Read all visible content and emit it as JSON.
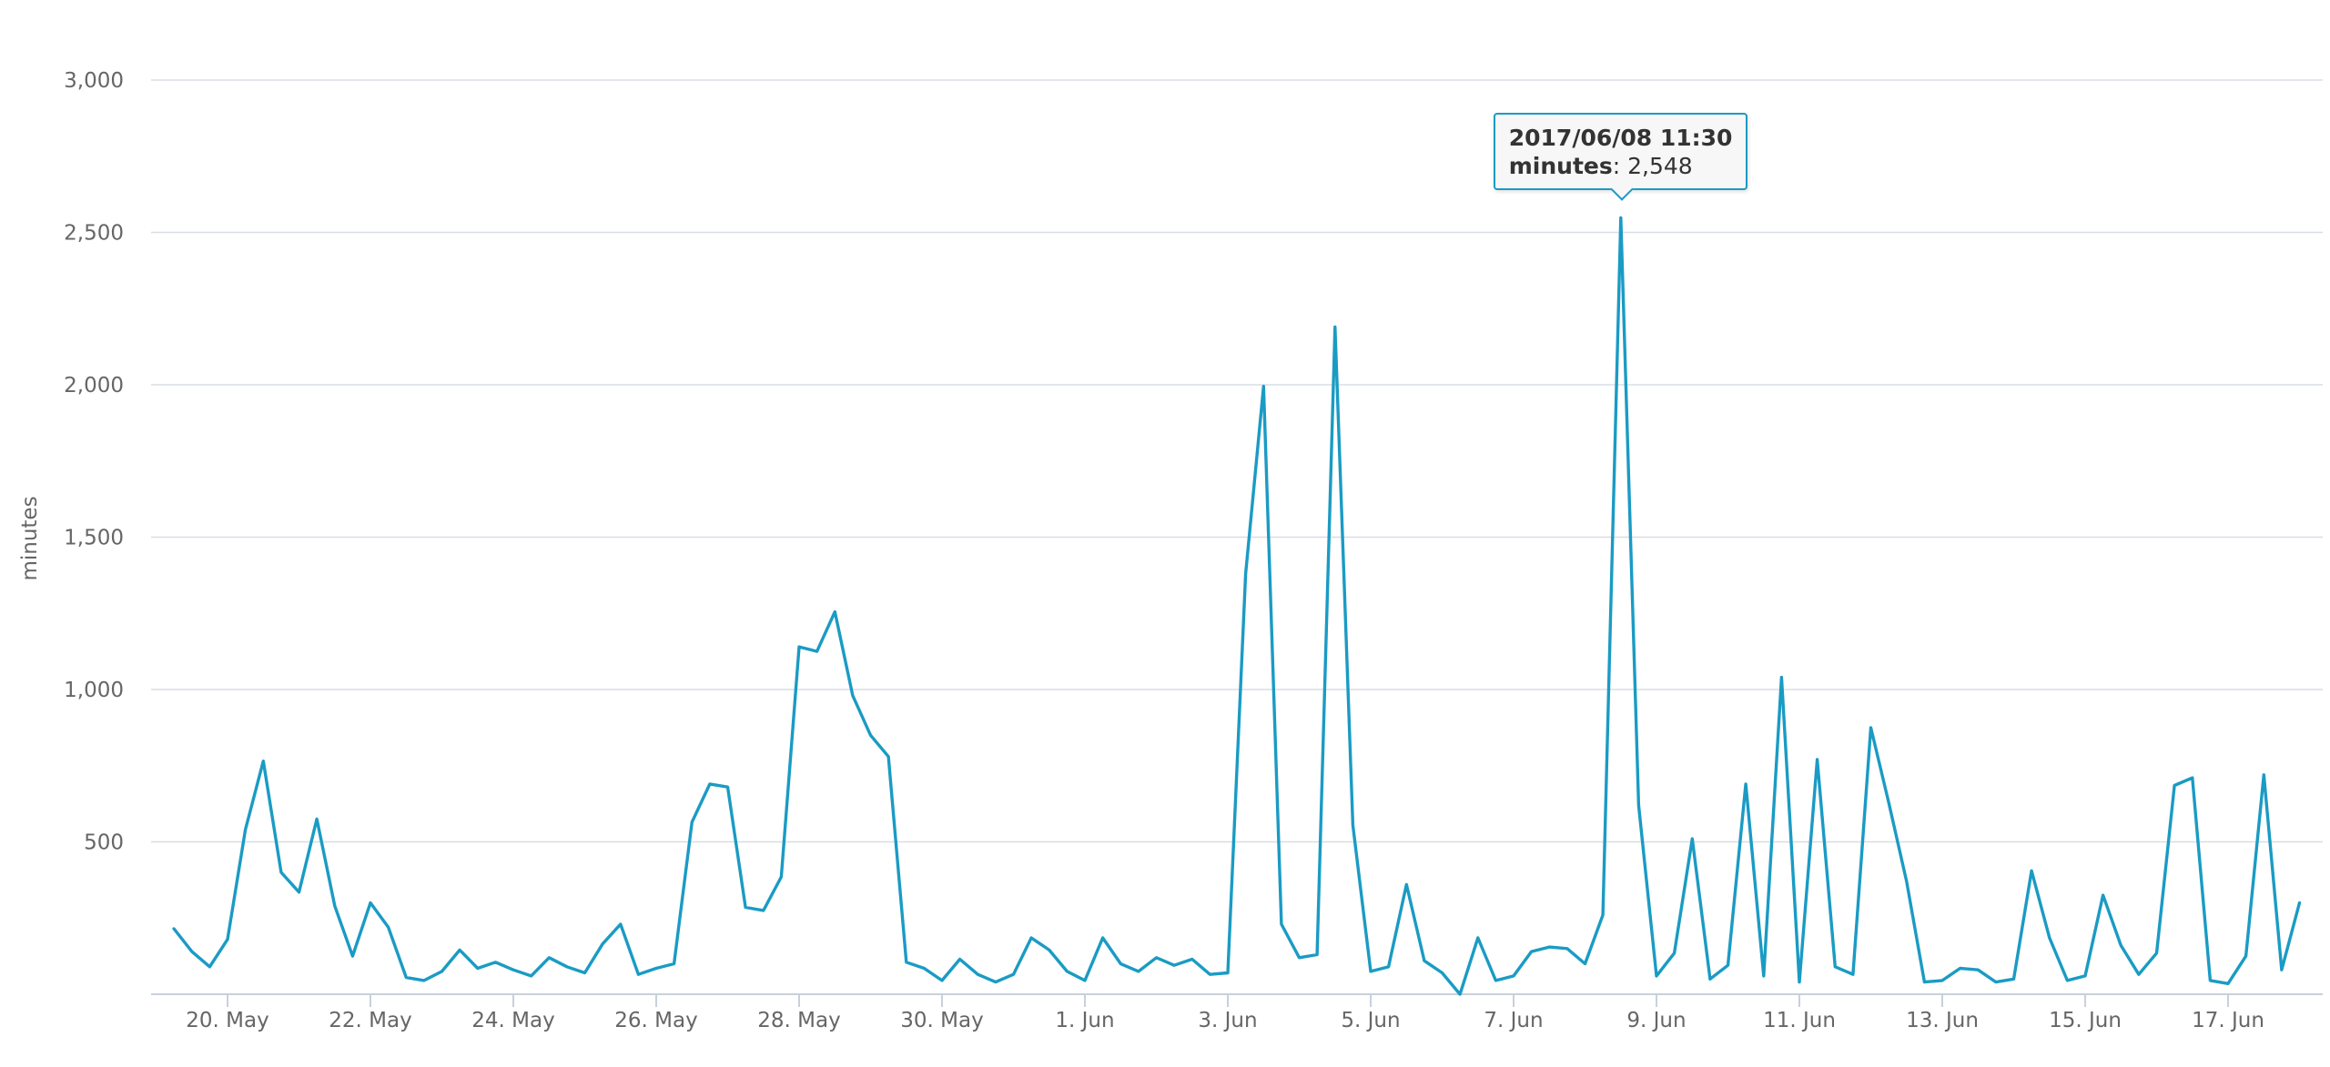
{
  "chart_data": {
    "type": "line",
    "title": "",
    "xlabel": "",
    "ylabel": "minutes",
    "ylim": [
      0,
      3000
    ],
    "yticks": [
      500,
      1000,
      1500,
      2000,
      2500,
      3000
    ],
    "ytick_labels": [
      "500",
      "1,000",
      "1,500",
      "2,000",
      "2,500",
      "3,000"
    ],
    "xticks": [
      "2017-05-20",
      "2017-05-22",
      "2017-05-24",
      "2017-05-26",
      "2017-05-28",
      "2017-05-30",
      "2017-06-01",
      "2017-06-03",
      "2017-06-05",
      "2017-06-07",
      "2017-06-09",
      "2017-06-11",
      "2017-06-13",
      "2017-06-15",
      "2017-06-17"
    ],
    "xtick_labels": [
      "20. May",
      "22. May",
      "24. May",
      "26. May",
      "28. May",
      "30. May",
      "1. Jun",
      "3. Jun",
      "5. Jun",
      "7. Jun",
      "9. Jun",
      "11. Jun",
      "13. Jun",
      "15. Jun",
      "17. Jun"
    ],
    "x_step_hours": 6,
    "x_start": "2017-05-19 06:00",
    "grid": true,
    "color": "#1a9bc4",
    "series": [
      {
        "values": [
          215,
          140,
          90,
          180,
          540,
          765,
          400,
          335,
          575,
          290,
          125,
          300,
          220,
          55,
          45,
          75,
          145,
          85,
          105,
          80,
          60,
          120,
          90,
          70,
          165,
          230,
          65,
          85,
          100,
          565,
          690,
          680,
          285,
          275,
          385,
          1140,
          1125,
          1255,
          980,
          850,
          780,
          105,
          85,
          45,
          115,
          65,
          40,
          65,
          185,
          145,
          75,
          45,
          185,
          100,
          75,
          120,
          95,
          115,
          65,
          70,
          1380,
          1995,
          230,
          120,
          130,
          2190,
          555,
          75,
          90,
          360,
          110,
          70,
          0,
          185,
          45,
          60,
          140,
          155,
          150,
          100,
          260,
          2548,
          620,
          60,
          135,
          510,
          50,
          95,
          690,
          60,
          1040,
          40,
          770,
          90,
          65,
          875,
          630,
          370,
          40,
          45,
          85,
          80,
          40,
          50,
          405,
          185,
          45,
          60,
          325,
          160,
          65,
          135,
          685,
          710,
          45,
          35,
          125,
          720,
          80,
          300
        ]
      }
    ]
  },
  "tooltip": {
    "date": "2017/06/08 11:30",
    "series_label": "minutes",
    "value": "2,548",
    "index": 81
  }
}
